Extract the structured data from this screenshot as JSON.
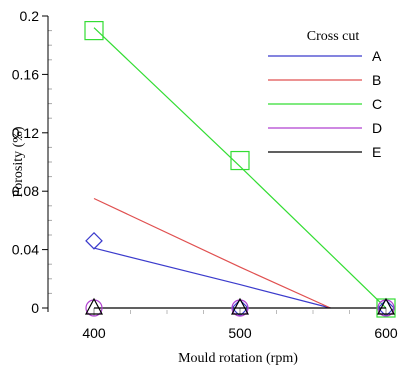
{
  "chart_data": {
    "type": "line",
    "xlabel": "Mould rotation (rpm)",
    "ylabel": "Porosity (%)",
    "xlim": [
      400,
      600
    ],
    "ylim": [
      0,
      0.2
    ],
    "x_ticks": [
      400,
      500,
      600
    ],
    "x_tick_labels": [
      "400",
      "500",
      "600"
    ],
    "y_ticks": [
      0,
      0.04,
      0.08,
      0.12,
      0.16,
      0.2
    ],
    "y_tick_labels": [
      "0",
      "0.04",
      "0.08",
      "0.12",
      "0.16",
      "0.2"
    ],
    "legend_title": "Cross cut",
    "legend_position": "top-right",
    "grid": false,
    "series": [
      {
        "name": "A",
        "color": "#3b3bcc",
        "marker": "diamond",
        "fit": [
          [
            400,
            0.041
          ],
          [
            500,
            0.016
          ],
          [
            562,
            0
          ]
        ],
        "points": [
          [
            400,
            0.046
          ],
          [
            500,
            0
          ],
          [
            600,
            0
          ]
        ]
      },
      {
        "name": "B",
        "color": "#e05050",
        "marker": "none",
        "fit": [
          [
            400,
            0.075
          ],
          [
            500,
            0.028
          ],
          [
            562,
            0
          ]
        ],
        "points": []
      },
      {
        "name": "C",
        "color": "#33dd33",
        "marker": "square",
        "fit": [
          [
            400,
            0.192
          ],
          [
            500,
            0.097
          ],
          [
            600,
            0
          ]
        ],
        "points": [
          [
            400,
            0.19
          ],
          [
            500,
            0.101
          ],
          [
            600,
            0
          ]
        ]
      },
      {
        "name": "D",
        "color": "#b040d0",
        "marker": "circle",
        "fit": [],
        "points": [
          [
            400,
            0
          ],
          [
            500,
            0
          ],
          [
            600,
            0
          ]
        ]
      },
      {
        "name": "E",
        "color": "#000000",
        "marker": "triangle",
        "fit": [
          [
            400,
            0
          ],
          [
            600,
            0
          ]
        ],
        "points": [
          [
            400,
            0
          ],
          [
            500,
            0
          ],
          [
            600,
            0
          ]
        ]
      }
    ]
  }
}
